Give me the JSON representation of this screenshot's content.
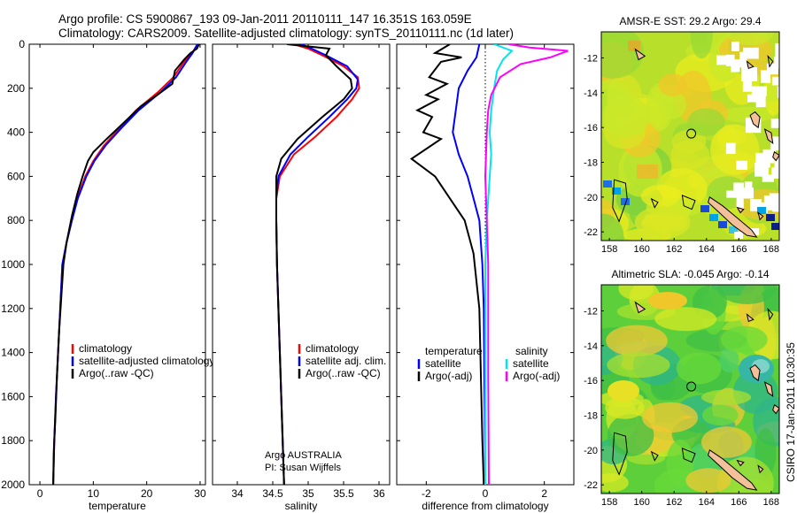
{
  "figure": {
    "title_line1": "Argo profile: CS 5900867_193 09-Jan-2011 20110111_147 16.351S 163.059E",
    "title_line2": "Climatology: CARS2009. Satellite-adjusted climatology: synTS_20110111.nc (1d later)",
    "side_text": "CSIRO 17-Jan-2011 10:30:35",
    "argo_credit_1": "Argo AUSTRALIA",
    "argo_credit_2": "PI: Susan Wijffels"
  },
  "chart_data": [
    {
      "type": "line",
      "panel": "temperature",
      "xlabel": "temperature",
      "xlim": [
        -2,
        31
      ],
      "xticks": [
        0,
        10,
        20,
        30
      ],
      "ylim": [
        2000,
        0
      ],
      "yticks": [
        0,
        200,
        400,
        600,
        800,
        1000,
        1200,
        1400,
        1600,
        1800,
        2000
      ],
      "y_inverted": true,
      "legend": {
        "position": "lower-middle",
        "entries": [
          "climatology",
          "satellite-adjusted climatology",
          "Argo(..raw -QC)"
        ]
      },
      "series": [
        {
          "name": "climatology",
          "color": "#ff0000",
          "points": [
            [
              29.5,
              0
            ],
            [
              28.5,
              40
            ],
            [
              27,
              80
            ],
            [
              25,
              150
            ],
            [
              22,
              220
            ],
            [
              18,
              300
            ],
            [
              15,
              380
            ],
            [
              12,
              460
            ],
            [
              10,
              530
            ],
            [
              8.5,
              600
            ],
            [
              7,
              700
            ],
            [
              6,
              800
            ],
            [
              5,
              900
            ],
            [
              4.2,
              1000
            ],
            [
              3.8,
              1200
            ],
            [
              3.4,
              1400
            ],
            [
              3,
              1600
            ],
            [
              2.7,
              1800
            ],
            [
              2.5,
              2000
            ]
          ]
        },
        {
          "name": "satellite-adjusted climatology",
          "color": "#0000ff",
          "points": [
            [
              29.5,
              0
            ],
            [
              28.6,
              40
            ],
            [
              27.4,
              80
            ],
            [
              25.5,
              150
            ],
            [
              22.5,
              220
            ],
            [
              18.5,
              300
            ],
            [
              15.3,
              380
            ],
            [
              12.3,
              460
            ],
            [
              10.2,
              530
            ],
            [
              8.7,
              600
            ],
            [
              7.1,
              700
            ],
            [
              6,
              800
            ],
            [
              5,
              900
            ],
            [
              4.2,
              1000
            ],
            [
              3.8,
              1200
            ],
            [
              3.4,
              1400
            ],
            [
              3,
              1600
            ],
            [
              2.7,
              1800
            ],
            [
              2.5,
              2000
            ]
          ]
        },
        {
          "name": "Argo(..raw -QC)",
          "color": "#000000",
          "points": [
            [
              29.8,
              0
            ],
            [
              29.4,
              20
            ],
            [
              28.2,
              40
            ],
            [
              27,
              70
            ],
            [
              25.3,
              120
            ],
            [
              24.8,
              180
            ],
            [
              22,
              230
            ],
            [
              19,
              280
            ],
            [
              16,
              350
            ],
            [
              12.5,
              430
            ],
            [
              10,
              490
            ],
            [
              9,
              530
            ],
            [
              8,
              600
            ],
            [
              7,
              680
            ],
            [
              6,
              780
            ],
            [
              5,
              900
            ],
            [
              4.4,
              1000
            ],
            [
              4,
              1150
            ],
            [
              3.6,
              1300
            ],
            [
              3.2,
              1500
            ],
            [
              2.9,
              1700
            ],
            [
              2.6,
              1850
            ],
            [
              2.5,
              2000
            ]
          ]
        }
      ]
    },
    {
      "type": "line",
      "panel": "salinity",
      "xlabel": "salinity",
      "xlim": [
        33.65,
        36.15
      ],
      "xticks": [
        34,
        34.5,
        35,
        35.5,
        36
      ],
      "ylim": [
        2000,
        0
      ],
      "y_inverted": true,
      "legend": {
        "position": "lower-middle",
        "entries": [
          "climatology",
          "satellite adj. clim.",
          "Argo(..raw -QC)"
        ]
      },
      "series": [
        {
          "name": "climatology",
          "color": "#ff0000",
          "points": [
            [
              34.8,
              0
            ],
            [
              35,
              20
            ],
            [
              35.2,
              50
            ],
            [
              35.5,
              100
            ],
            [
              35.7,
              150
            ],
            [
              35.72,
              200
            ],
            [
              35.62,
              250
            ],
            [
              35.4,
              330
            ],
            [
              35.1,
              420
            ],
            [
              34.8,
              500
            ],
            [
              34.6,
              600
            ],
            [
              34.55,
              700
            ],
            [
              34.55,
              800
            ],
            [
              34.56,
              1000
            ],
            [
              34.58,
              1200
            ],
            [
              34.6,
              1400
            ],
            [
              34.62,
              1600
            ],
            [
              34.64,
              1800
            ],
            [
              34.66,
              2000
            ]
          ]
        },
        {
          "name": "satellite adj. clim.",
          "color": "#0000ff",
          "points": [
            [
              34.9,
              0
            ],
            [
              35.05,
              20
            ],
            [
              35.25,
              50
            ],
            [
              35.55,
              100
            ],
            [
              35.7,
              160
            ],
            [
              35.68,
              200
            ],
            [
              35.55,
              250
            ],
            [
              35.3,
              330
            ],
            [
              35,
              420
            ],
            [
              34.75,
              500
            ],
            [
              34.58,
              600
            ],
            [
              34.55,
              700
            ],
            [
              34.55,
              800
            ],
            [
              34.56,
              1000
            ],
            [
              34.58,
              1200
            ],
            [
              34.6,
              1400
            ],
            [
              34.62,
              1600
            ],
            [
              34.64,
              1800
            ],
            [
              34.66,
              2000
            ]
          ]
        },
        {
          "name": "Argo(..raw -QC)",
          "color": "#000000",
          "points": [
            [
              34.7,
              0
            ],
            [
              35.3,
              20
            ],
            [
              35.25,
              50
            ],
            [
              35.4,
              100
            ],
            [
              35.6,
              160
            ],
            [
              35.62,
              200
            ],
            [
              35.5,
              250
            ],
            [
              35.2,
              330
            ],
            [
              34.85,
              430
            ],
            [
              34.62,
              520
            ],
            [
              34.55,
              600
            ],
            [
              34.55,
              700
            ],
            [
              34.55,
              800
            ],
            [
              34.56,
              1000
            ],
            [
              34.58,
              1200
            ],
            [
              34.6,
              1400
            ],
            [
              34.62,
              1600
            ],
            [
              34.64,
              1800
            ],
            [
              34.66,
              2000
            ]
          ]
        }
      ]
    },
    {
      "type": "line",
      "panel": "difference",
      "xlabel": "difference from climatology",
      "xlim": [
        -3,
        3
      ],
      "xticks": [
        -2,
        0,
        2
      ],
      "ylim": [
        2000,
        0
      ],
      "y_inverted": true,
      "zero_line": "dotted",
      "legend": {
        "position": "lower-middle",
        "groups": [
          {
            "header": "temperature",
            "entries": [
              "satellite",
              "Argo(-adj)"
            ]
          },
          {
            "header": "salinity",
            "entries": [
              "satellite",
              "Argo(-adj)"
            ]
          }
        ]
      },
      "series": [
        {
          "name": "satellite",
          "group": "temperature",
          "color": "#0000ff",
          "points": [
            [
              -0.2,
              0
            ],
            [
              -0.3,
              60
            ],
            [
              -0.6,
              120
            ],
            [
              -0.9,
              200
            ],
            [
              -1.0,
              300
            ],
            [
              -1.1,
              400
            ],
            [
              -0.9,
              500
            ],
            [
              -0.6,
              600
            ],
            [
              -0.4,
              700
            ],
            [
              -0.2,
              800
            ],
            [
              -0.1,
              1000
            ],
            [
              -0.05,
              1200
            ],
            [
              0,
              2000
            ]
          ]
        },
        {
          "name": "Argo(-adj)",
          "group": "temperature",
          "color": "#000000",
          "points": [
            [
              -1.2,
              0
            ],
            [
              -1.7,
              40
            ],
            [
              -0.8,
              60
            ],
            [
              -1.5,
              80
            ],
            [
              -1.9,
              150
            ],
            [
              -1.3,
              180
            ],
            [
              -2.0,
              230
            ],
            [
              -1.6,
              250
            ],
            [
              -2.3,
              300
            ],
            [
              -1.8,
              330
            ],
            [
              -2.1,
              400
            ],
            [
              -1.5,
              430
            ],
            [
              -2.5,
              520
            ],
            [
              -1.7,
              600
            ],
            [
              -1.2,
              700
            ],
            [
              -0.7,
              800
            ],
            [
              -0.4,
              950
            ],
            [
              -0.2,
              1200
            ],
            [
              -0.15,
              1500
            ],
            [
              -0.1,
              1800
            ],
            [
              -0.05,
              2000
            ]
          ]
        },
        {
          "name": "satellite",
          "group": "salinity",
          "color": "#00e5ee",
          "points": [
            [
              0.3,
              0
            ],
            [
              0.9,
              30
            ],
            [
              0.6,
              70
            ],
            [
              0.4,
              120
            ],
            [
              0.3,
              200
            ],
            [
              0.2,
              300
            ],
            [
              0.15,
              400
            ],
            [
              0.2,
              500
            ],
            [
              0.15,
              600
            ],
            [
              0.05,
              800
            ],
            [
              0,
              1000
            ],
            [
              0,
              2000
            ]
          ]
        },
        {
          "name": "Argo(-adj)",
          "group": "salinity",
          "color": "#ff00ff",
          "points": [
            [
              0.8,
              0
            ],
            [
              1.5,
              15
            ],
            [
              2.8,
              30
            ],
            [
              2.2,
              60
            ],
            [
              1.2,
              90
            ],
            [
              0.5,
              150
            ],
            [
              0.2,
              230
            ],
            [
              0.1,
              300
            ],
            [
              0.05,
              400
            ],
            [
              0,
              600
            ],
            [
              0.05,
              800
            ],
            [
              0.1,
              1000
            ],
            [
              0.1,
              1500
            ],
            [
              0.12,
              2000
            ]
          ]
        }
      ]
    },
    {
      "type": "heatmap",
      "panel": "sst",
      "title": "AMSR-E SST: 29.2 Argo: 29.4",
      "xlim": [
        157.5,
        168.5
      ],
      "ylim": [
        -22.5,
        -10.5
      ],
      "xticks": [
        158,
        160,
        162,
        164,
        166,
        168
      ],
      "yticks": [
        -12,
        -14,
        -16,
        -18,
        -20,
        -22
      ],
      "argo_position": [
        163.06,
        -16.35
      ]
    },
    {
      "type": "heatmap",
      "panel": "sla",
      "title": "Altimetric SLA: -0.045 Argo: -0.14",
      "xlim": [
        157.5,
        168.5
      ],
      "ylim": [
        -22.5,
        -10.5
      ],
      "xticks": [
        158,
        160,
        162,
        164,
        166,
        168
      ],
      "yticks": [
        -12,
        -14,
        -16,
        -18,
        -20,
        -22
      ],
      "argo_position": [
        163.06,
        -16.35
      ]
    }
  ]
}
